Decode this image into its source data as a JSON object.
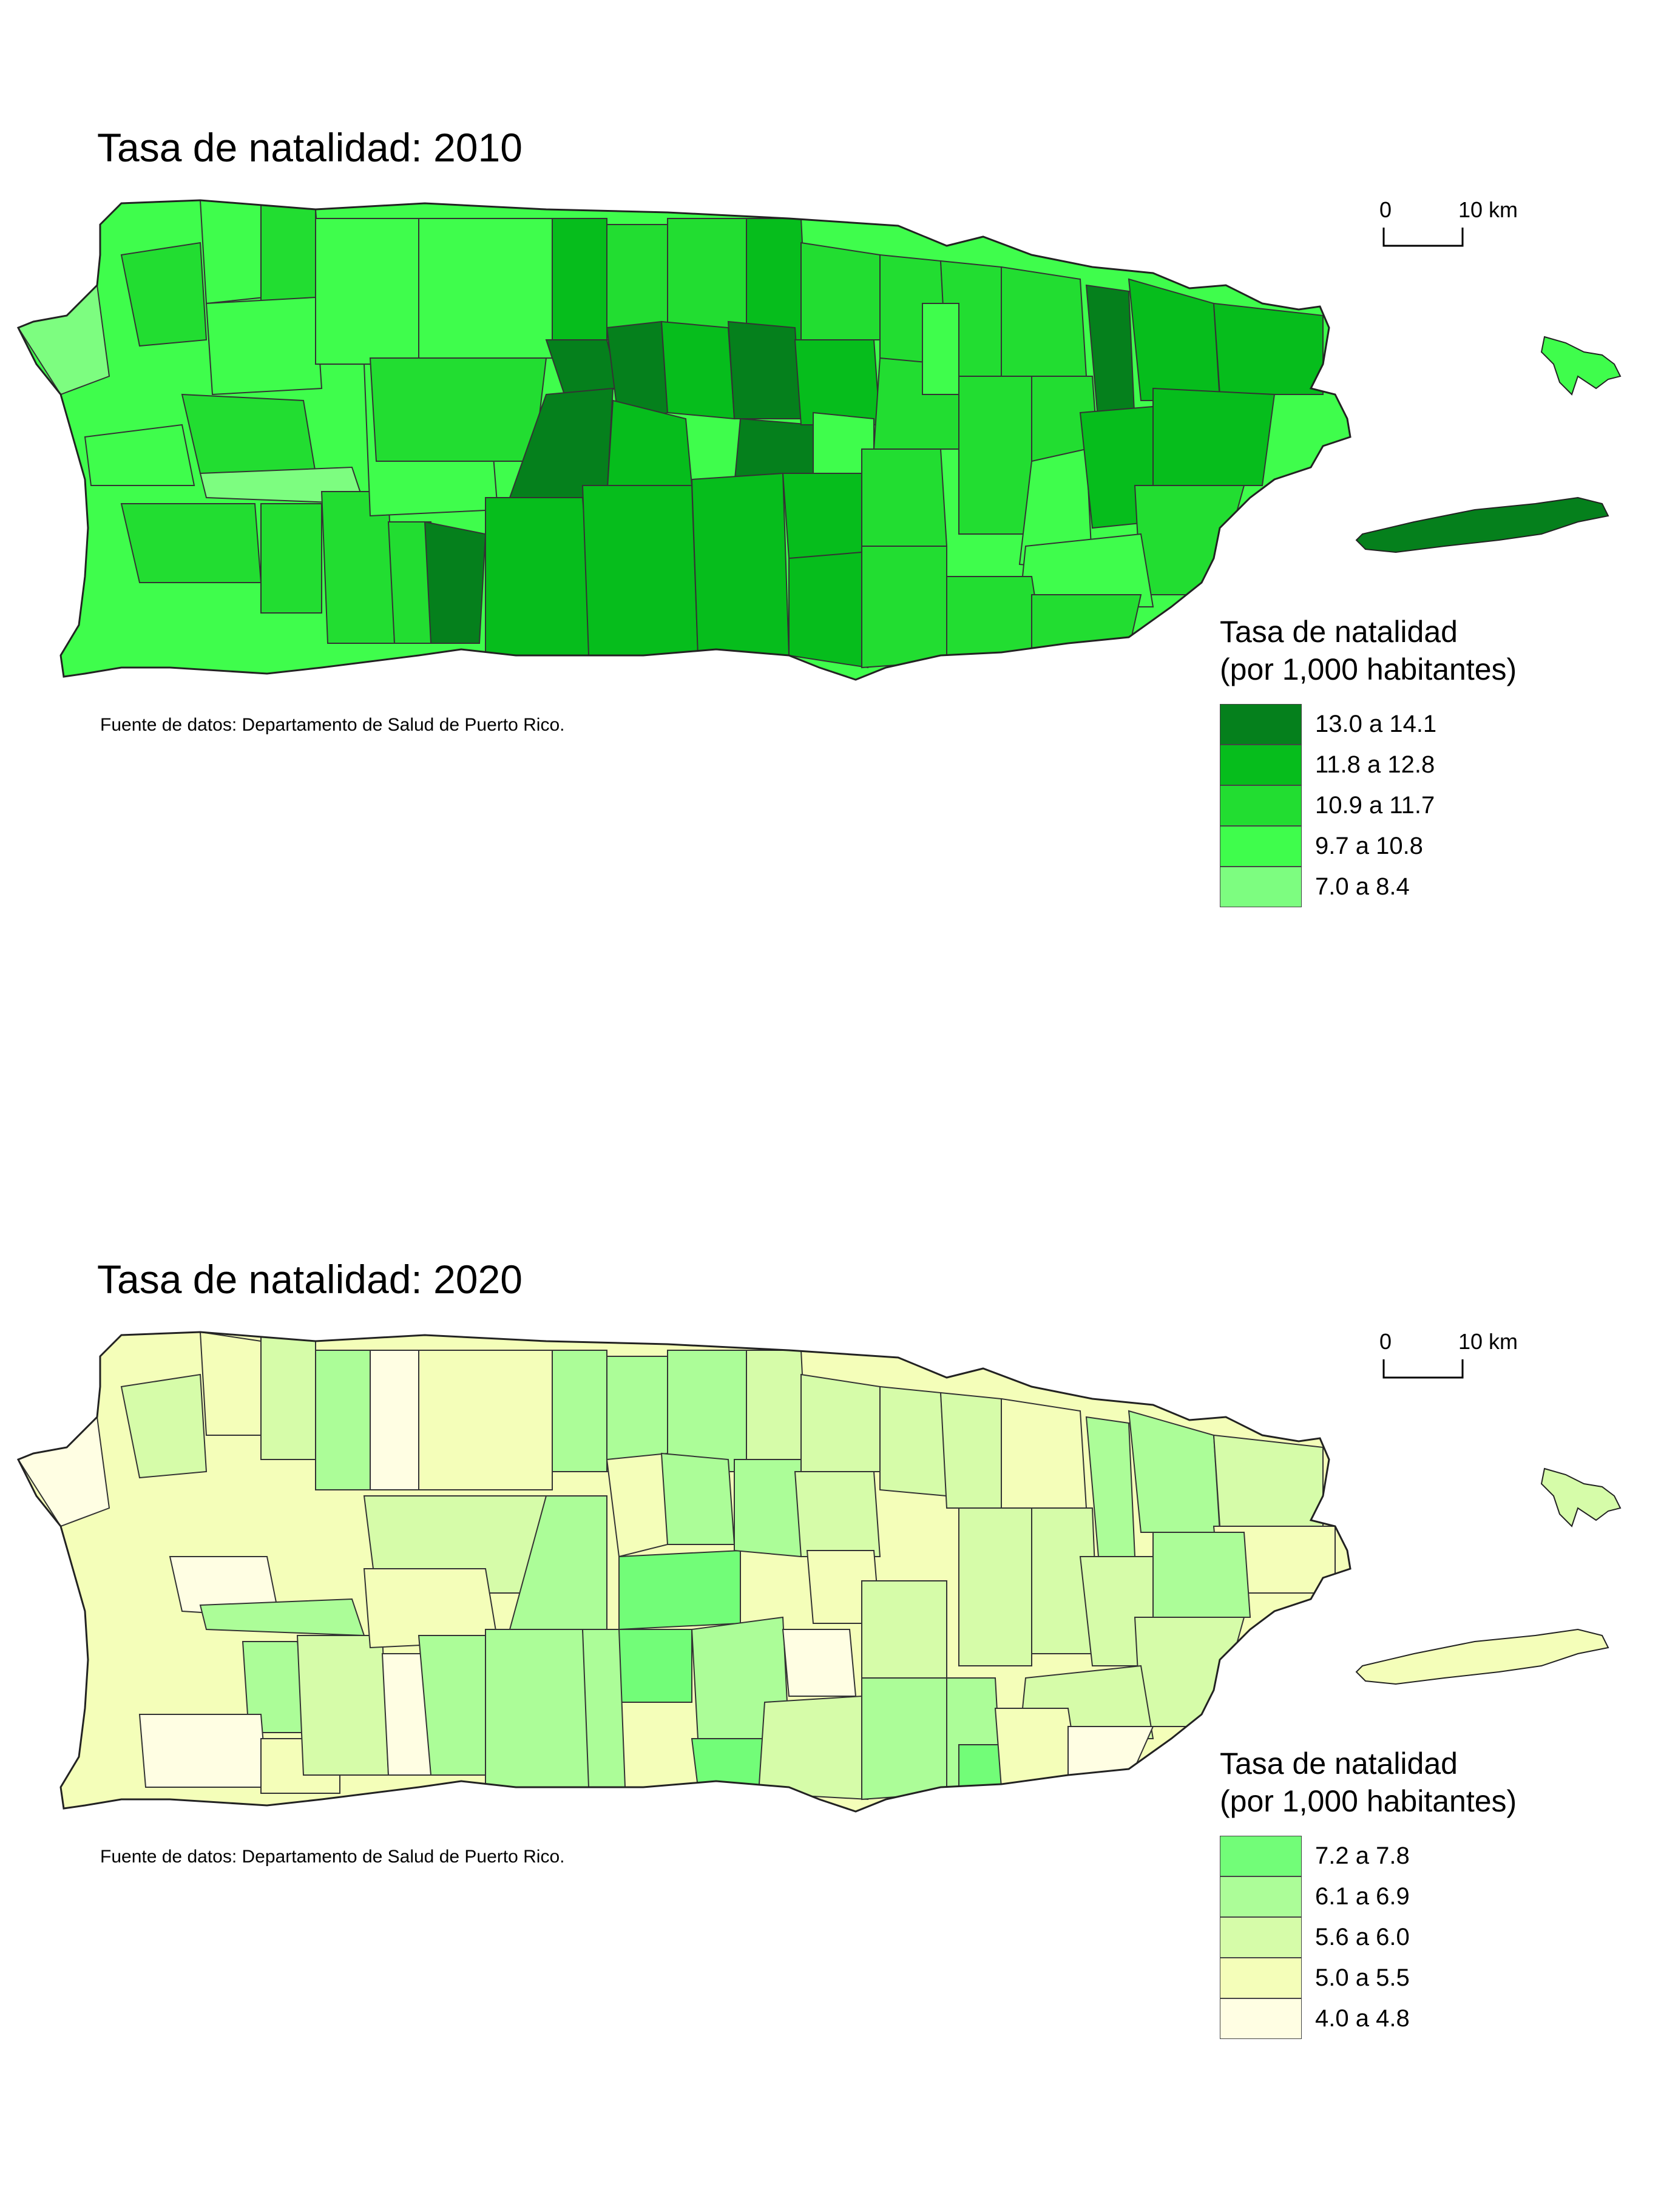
{
  "maps": [
    {
      "title": "Tasa de natalidad: 2010",
      "source": "Fuente de datos: Departamento de Salud de Puerto Rico.",
      "scale": {
        "zero": "0",
        "ten": "10 km"
      },
      "legend": {
        "title_line1": "Tasa de natalidad",
        "title_line2": "(por 1,000 habitantes)",
        "items": [
          {
            "label": "13.0 a 14.1",
            "color": "#05801c"
          },
          {
            "label": "11.8 a 12.8",
            "color": "#06bd1c"
          },
          {
            "label": "10.9 a 11.7",
            "color": "#22dd31"
          },
          {
            "label": "9.7 a 10.8",
            "color": "#3ffd4c"
          },
          {
            "label": "7.0 a 8.4",
            "color": "#7dfd80"
          }
        ]
      }
    },
    {
      "title": "Tasa de natalidad: 2020",
      "source": "Fuente de datos: Departamento de Salud de Puerto Rico.",
      "scale": {
        "zero": "0",
        "ten": "10 km"
      },
      "legend": {
        "title_line1": "Tasa de natalidad",
        "title_line2": "(por 1,000 habitantes)",
        "items": [
          {
            "label": "7.2 a 7.8",
            "color": "#72fd78"
          },
          {
            "label": "6.1 a 6.9",
            "color": "#acfd98"
          },
          {
            "label": "5.6 a 6.0",
            "color": "#d6fca9"
          },
          {
            "label": "5.0 a 5.5",
            "color": "#f4feb9"
          },
          {
            "label": "4.0 a 4.8",
            "color": "#fffee3"
          }
        ]
      }
    }
  ]
}
